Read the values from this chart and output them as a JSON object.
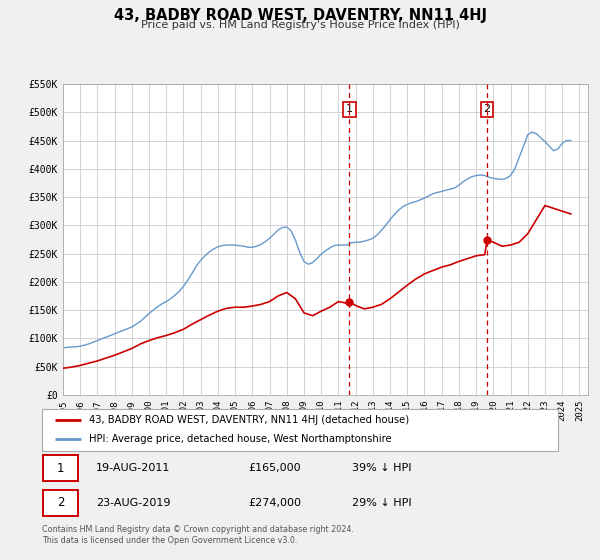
{
  "title": "43, BADBY ROAD WEST, DAVENTRY, NN11 4HJ",
  "subtitle": "Price paid vs. HM Land Registry's House Price Index (HPI)",
  "ylim": [
    0,
    550000
  ],
  "xlim_start": 1995.0,
  "xlim_end": 2025.5,
  "yticks": [
    0,
    50000,
    100000,
    150000,
    200000,
    250000,
    300000,
    350000,
    400000,
    450000,
    500000,
    550000
  ],
  "ytick_labels": [
    "£0",
    "£50K",
    "£100K",
    "£150K",
    "£200K",
    "£250K",
    "£300K",
    "£350K",
    "£400K",
    "£450K",
    "£500K",
    "£550K"
  ],
  "xticks": [
    1995,
    1996,
    1997,
    1998,
    1999,
    2000,
    2001,
    2002,
    2003,
    2004,
    2005,
    2006,
    2007,
    2008,
    2009,
    2010,
    2011,
    2012,
    2013,
    2014,
    2015,
    2016,
    2017,
    2018,
    2019,
    2020,
    2021,
    2022,
    2023,
    2024,
    2025
  ],
  "grid_color": "#cccccc",
  "bg_color": "#f0f0f0",
  "plot_bg_color": "#ffffff",
  "red_line_color": "#cc0000",
  "blue_line_color": "#6699cc",
  "marker_color": "#cc0000",
  "vline_color": "#cc0000",
  "annotation_box_color": "#cc0000",
  "legend_label_red": "43, BADBY ROAD WEST, DAVENTRY, NN11 4HJ (detached house)",
  "legend_label_blue": "HPI: Average price, detached house, West Northamptonshire",
  "sale1_date": "19-AUG-2011",
  "sale1_price": "£165,000",
  "sale1_pct": "39% ↓ HPI",
  "sale1_x": 2011.63,
  "sale1_y": 165000,
  "sale2_date": "23-AUG-2019",
  "sale2_price": "£274,000",
  "sale2_pct": "29% ↓ HPI",
  "sale2_x": 2019.64,
  "sale2_y": 274000,
  "footer_line1": "Contains HM Land Registry data © Crown copyright and database right 2024.",
  "footer_line2": "This data is licensed under the Open Government Licence v3.0.",
  "hpi_years": [
    1995.0,
    1995.25,
    1995.5,
    1995.75,
    1996.0,
    1996.25,
    1996.5,
    1996.75,
    1997.0,
    1997.25,
    1997.5,
    1997.75,
    1998.0,
    1998.25,
    1998.5,
    1998.75,
    1999.0,
    1999.25,
    1999.5,
    1999.75,
    2000.0,
    2000.25,
    2000.5,
    2000.75,
    2001.0,
    2001.25,
    2001.5,
    2001.75,
    2002.0,
    2002.25,
    2002.5,
    2002.75,
    2003.0,
    2003.25,
    2003.5,
    2003.75,
    2004.0,
    2004.25,
    2004.5,
    2004.75,
    2005.0,
    2005.25,
    2005.5,
    2005.75,
    2006.0,
    2006.25,
    2006.5,
    2006.75,
    2007.0,
    2007.25,
    2007.5,
    2007.75,
    2008.0,
    2008.25,
    2008.5,
    2008.75,
    2009.0,
    2009.25,
    2009.5,
    2009.75,
    2010.0,
    2010.25,
    2010.5,
    2010.75,
    2011.0,
    2011.25,
    2011.5,
    2011.75,
    2012.0,
    2012.25,
    2012.5,
    2012.75,
    2013.0,
    2013.25,
    2013.5,
    2013.75,
    2014.0,
    2014.25,
    2014.5,
    2014.75,
    2015.0,
    2015.25,
    2015.5,
    2015.75,
    2016.0,
    2016.25,
    2016.5,
    2016.75,
    2017.0,
    2017.25,
    2017.5,
    2017.75,
    2018.0,
    2018.25,
    2018.5,
    2018.75,
    2019.0,
    2019.25,
    2019.5,
    2019.75,
    2020.0,
    2020.25,
    2020.5,
    2020.75,
    2021.0,
    2021.25,
    2021.5,
    2021.75,
    2022.0,
    2022.25,
    2022.5,
    2022.75,
    2023.0,
    2023.25,
    2023.5,
    2023.75,
    2024.0,
    2024.25,
    2024.5
  ],
  "hpi_values": [
    83000,
    84000,
    84500,
    85000,
    86000,
    88000,
    90000,
    93000,
    96000,
    99000,
    102000,
    105000,
    108000,
    111000,
    114000,
    117000,
    120000,
    125000,
    130000,
    137000,
    144000,
    150000,
    156000,
    161000,
    165000,
    170000,
    176000,
    183000,
    192000,
    203000,
    215000,
    228000,
    238000,
    246000,
    253000,
    258000,
    262000,
    264000,
    265000,
    265000,
    265000,
    264000,
    263000,
    261000,
    261000,
    263000,
    266000,
    271000,
    277000,
    284000,
    292000,
    296000,
    297000,
    290000,
    274000,
    252000,
    236000,
    231000,
    234000,
    241000,
    249000,
    255000,
    260000,
    264000,
    265000,
    265000,
    265000,
    269000,
    270000,
    270000,
    272000,
    274000,
    277000,
    283000,
    291000,
    300000,
    310000,
    319000,
    327000,
    333000,
    337000,
    340000,
    342000,
    345000,
    348000,
    352000,
    356000,
    358000,
    360000,
    362000,
    364000,
    366000,
    371000,
    377000,
    382000,
    386000,
    388000,
    389000,
    388000,
    385000,
    383000,
    382000,
    381000,
    383000,
    388000,
    400000,
    420000,
    440000,
    460000,
    465000,
    462000,
    455000,
    448000,
    440000,
    432000,
    435000,
    445000,
    450000,
    450000
  ],
  "red_years": [
    1995.0,
    1995.5,
    1996.0,
    1996.5,
    1997.0,
    1997.5,
    1998.0,
    1998.5,
    1999.0,
    1999.5,
    2000.0,
    2000.5,
    2001.0,
    2001.5,
    2002.0,
    2002.5,
    2003.0,
    2003.5,
    2004.0,
    2004.5,
    2005.0,
    2005.5,
    2006.0,
    2006.5,
    2007.0,
    2007.5,
    2008.0,
    2008.5,
    2009.0,
    2009.5,
    2010.0,
    2010.5,
    2011.0,
    2011.5,
    2011.63,
    2012.0,
    2012.5,
    2013.0,
    2013.5,
    2014.0,
    2014.5,
    2015.0,
    2015.5,
    2016.0,
    2016.5,
    2017.0,
    2017.5,
    2018.0,
    2018.5,
    2019.0,
    2019.5,
    2019.64,
    2020.0,
    2020.5,
    2021.0,
    2021.5,
    2022.0,
    2022.5,
    2023.0,
    2023.5,
    2024.0,
    2024.5
  ],
  "red_values": [
    47000,
    49000,
    52000,
    56000,
    60000,
    65000,
    70000,
    76000,
    82000,
    90000,
    96000,
    101000,
    105000,
    110000,
    116000,
    125000,
    133000,
    141000,
    148000,
    153000,
    155000,
    155000,
    157000,
    160000,
    165000,
    175000,
    181000,
    170000,
    145000,
    140000,
    148000,
    155000,
    165000,
    162000,
    165000,
    158000,
    152000,
    155000,
    160000,
    170000,
    182000,
    194000,
    205000,
    214000,
    220000,
    226000,
    230000,
    236000,
    241000,
    246000,
    248000,
    274000,
    270000,
    263000,
    265000,
    270000,
    285000,
    310000,
    335000,
    330000,
    325000,
    320000
  ]
}
